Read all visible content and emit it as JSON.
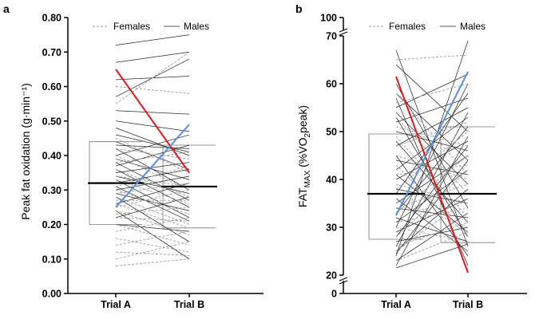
{
  "chart_data": [
    {
      "type": "line",
      "panel": "a",
      "ylabel": "Peak fat oxidation  (g·min⁻¹)",
      "ylim": [
        0,
        0.8
      ],
      "yticks": [
        "0.00",
        "0.10",
        "0.20",
        "0.30",
        "0.40",
        "0.50",
        "0.60",
        "0.70",
        "0.80"
      ],
      "categories": [
        "Trial A",
        "Trial B"
      ],
      "legend": [
        "Females",
        "Males"
      ],
      "legend_position": "top",
      "box": {
        "trial_a": [
          0.2,
          0.44
        ],
        "trial_b": [
          0.19,
          0.43
        ]
      },
      "means": [
        0.32,
        0.31
      ],
      "series": [
        {
          "name": "Males",
          "values": [
            0.72,
            0.75
          ]
        },
        {
          "name": "Males",
          "values": [
            0.67,
            0.7
          ]
        },
        {
          "name": "Males",
          "values": [
            0.57,
            0.68
          ]
        },
        {
          "name": "Males",
          "values": [
            0.62,
            0.63
          ]
        },
        {
          "name": "Females",
          "values": [
            0.55,
            0.7
          ]
        },
        {
          "name": "Females",
          "values": [
            0.6,
            0.58
          ]
        },
        {
          "name": "Males",
          "values": [
            0.53,
            0.52
          ]
        },
        {
          "name": "Males",
          "values": [
            0.5,
            0.47
          ]
        },
        {
          "name": "Males",
          "values": [
            0.48,
            0.4
          ]
        },
        {
          "name": "Males",
          "values": [
            0.46,
            0.41
          ]
        },
        {
          "name": "Males",
          "values": [
            0.44,
            0.36
          ]
        },
        {
          "name": "Males",
          "values": [
            0.43,
            0.42
          ]
        },
        {
          "name": "Males",
          "values": [
            0.42,
            0.3
          ]
        },
        {
          "name": "Males",
          "values": [
            0.4,
            0.46
          ]
        },
        {
          "name": "Males",
          "values": [
            0.39,
            0.33
          ]
        },
        {
          "name": "Males",
          "values": [
            0.38,
            0.27
          ]
        },
        {
          "name": "Males",
          "values": [
            0.37,
            0.43
          ]
        },
        {
          "name": "Males",
          "values": [
            0.36,
            0.25
          ]
        },
        {
          "name": "Males",
          "values": [
            0.35,
            0.38
          ]
        },
        {
          "name": "Males",
          "values": [
            0.34,
            0.29
          ]
        },
        {
          "name": "Males",
          "values": [
            0.33,
            0.22
          ]
        },
        {
          "name": "Males",
          "values": [
            0.32,
            0.36
          ]
        },
        {
          "name": "Males",
          "values": [
            0.31,
            0.21
          ]
        },
        {
          "name": "Males",
          "values": [
            0.3,
            0.34
          ]
        },
        {
          "name": "Males",
          "values": [
            0.29,
            0.24
          ]
        },
        {
          "name": "Males",
          "values": [
            0.28,
            0.15
          ]
        },
        {
          "name": "Males",
          "values": [
            0.26,
            0.32
          ]
        },
        {
          "name": "Males",
          "values": [
            0.24,
            0.1
          ]
        },
        {
          "name": "Males",
          "values": [
            0.22,
            0.28
          ]
        },
        {
          "name": "Males",
          "values": [
            0.2,
            0.18
          ]
        },
        {
          "name": "Females",
          "values": [
            0.45,
            0.35
          ]
        },
        {
          "name": "Females",
          "values": [
            0.42,
            0.39
          ]
        },
        {
          "name": "Females",
          "values": [
            0.4,
            0.3
          ]
        },
        {
          "name": "Females",
          "values": [
            0.38,
            0.41
          ]
        },
        {
          "name": "Females",
          "values": [
            0.36,
            0.28
          ]
        },
        {
          "name": "Females",
          "values": [
            0.34,
            0.31
          ]
        },
        {
          "name": "Females",
          "values": [
            0.33,
            0.26
          ]
        },
        {
          "name": "Females",
          "values": [
            0.31,
            0.37
          ]
        },
        {
          "name": "Females",
          "values": [
            0.3,
            0.23
          ]
        },
        {
          "name": "Females",
          "values": [
            0.29,
            0.32
          ]
        },
        {
          "name": "Females",
          "values": [
            0.28,
            0.2
          ]
        },
        {
          "name": "Females",
          "values": [
            0.27,
            0.27
          ]
        },
        {
          "name": "Females",
          "values": [
            0.26,
            0.19
          ]
        },
        {
          "name": "Females",
          "values": [
            0.25,
            0.3
          ]
        },
        {
          "name": "Females",
          "values": [
            0.24,
            0.17
          ]
        },
        {
          "name": "Females",
          "values": [
            0.23,
            0.25
          ]
        },
        {
          "name": "Females",
          "values": [
            0.22,
            0.21
          ]
        },
        {
          "name": "Females",
          "values": [
            0.2,
            0.14
          ]
        },
        {
          "name": "Females",
          "values": [
            0.18,
            0.22
          ]
        },
        {
          "name": "Females",
          "values": [
            0.16,
            0.12
          ]
        },
        {
          "name": "Females",
          "values": [
            0.14,
            0.18
          ]
        },
        {
          "name": "Females",
          "values": [
            0.12,
            0.11
          ]
        },
        {
          "name": "Females",
          "values": [
            0.1,
            0.15
          ]
        },
        {
          "name": "Females",
          "values": [
            0.08,
            0.1
          ]
        },
        {
          "name": "Males",
          "values": [
            0.65,
            0.35
          ],
          "color": "#e31a1c",
          "highlight": true
        },
        {
          "name": "Males",
          "values": [
            0.25,
            0.49
          ],
          "color": "#5b8fdf",
          "highlight": true
        }
      ]
    },
    {
      "type": "line",
      "panel": "b",
      "ylabel": "FAT",
      "ylabel_sub": "MAX",
      "ylabel_rest": "  (%V̇O",
      "ylabel_sub2": "2",
      "ylabel_end": "peak)",
      "ylim": [
        20,
        70
      ],
      "axis_break": true,
      "yticks": [
        "20",
        "30",
        "40",
        "50",
        "60",
        "70"
      ],
      "yticks_extra": [
        "0",
        "100"
      ],
      "categories": [
        "Trial A",
        "Trial B"
      ],
      "legend": [
        "Females",
        "Males"
      ],
      "legend_position": "top",
      "box": {
        "trial_a": [
          27.5,
          49.5
        ],
        "trial_b": [
          26.8,
          51.0
        ]
      },
      "means": [
        37.0,
        37.0
      ],
      "series": [
        {
          "name": "Males",
          "values": [
            67.0,
            26.0
          ]
        },
        {
          "name": "Males",
          "values": [
            64.0,
            50.0
          ]
        },
        {
          "name": "Males",
          "values": [
            60.0,
            34.0
          ]
        },
        {
          "name": "Males",
          "values": [
            58.0,
            44.0
          ]
        },
        {
          "name": "Males",
          "values": [
            57.0,
            22.0
          ]
        },
        {
          "name": "Males",
          "values": [
            55.0,
            62.0
          ]
        },
        {
          "name": "Males",
          "values": [
            54.0,
            39.0
          ]
        },
        {
          "name": "Males",
          "values": [
            53.0,
            28.0
          ]
        },
        {
          "name": "Males",
          "values": [
            52.0,
            57.0
          ]
        },
        {
          "name": "Males",
          "values": [
            50.0,
            46.0
          ]
        },
        {
          "name": "Males",
          "values": [
            48.0,
            31.0
          ]
        },
        {
          "name": "Males",
          "values": [
            47.0,
            55.0
          ]
        },
        {
          "name": "Males",
          "values": [
            45.0,
            24.0
          ]
        },
        {
          "name": "Males",
          "values": [
            44.0,
            41.0
          ]
        },
        {
          "name": "Males",
          "values": [
            42.0,
            53.0
          ]
        },
        {
          "name": "Males",
          "values": [
            41.0,
            29.0
          ]
        },
        {
          "name": "Males",
          "values": [
            40.0,
            48.0
          ]
        },
        {
          "name": "Males",
          "values": [
            38.0,
            35.0
          ]
        },
        {
          "name": "Males",
          "values": [
            37.0,
            58.0
          ]
        },
        {
          "name": "Males",
          "values": [
            36.0,
            25.0
          ]
        },
        {
          "name": "Males",
          "values": [
            35.0,
            45.0
          ]
        },
        {
          "name": "Males",
          "values": [
            34.0,
            32.0
          ]
        },
        {
          "name": "Males",
          "values": [
            33.0,
            51.0
          ]
        },
        {
          "name": "Males",
          "values": [
            32.0,
            27.0
          ]
        },
        {
          "name": "Males",
          "values": [
            31.0,
            42.0
          ]
        },
        {
          "name": "Males",
          "values": [
            30.0,
            60.0
          ]
        },
        {
          "name": "Males",
          "values": [
            29.0,
            36.0
          ]
        },
        {
          "name": "Males",
          "values": [
            28.0,
            47.0
          ]
        },
        {
          "name": "Males",
          "values": [
            27.0,
            30.0
          ]
        },
        {
          "name": "Males",
          "values": [
            26.0,
            54.0
          ]
        },
        {
          "name": "Males",
          "values": [
            25.0,
            38.0
          ]
        },
        {
          "name": "Males",
          "values": [
            24.5,
            44.0
          ]
        },
        {
          "name": "Males",
          "values": [
            24.0,
            69.0
          ]
        },
        {
          "name": "Males",
          "values": [
            23.0,
            33.0
          ]
        },
        {
          "name": "Males",
          "values": [
            22.0,
            49.0
          ]
        },
        {
          "name": "Males",
          "values": [
            21.5,
            26.5
          ]
        },
        {
          "name": "Females",
          "values": [
            65.0,
            66.0
          ]
        },
        {
          "name": "Females",
          "values": [
            58.0,
            41.0
          ]
        },
        {
          "name": "Females",
          "values": [
            56.0,
            60.0
          ]
        },
        {
          "name": "Females",
          "values": [
            53.0,
            37.0
          ]
        },
        {
          "name": "Females",
          "values": [
            51.0,
            47.0
          ]
        },
        {
          "name": "Females",
          "values": [
            49.0,
            32.0
          ]
        },
        {
          "name": "Females",
          "values": [
            47.0,
            52.0
          ]
        },
        {
          "name": "Females",
          "values": [
            45.0,
            40.0
          ]
        },
        {
          "name": "Females",
          "values": [
            43.0,
            28.0
          ]
        },
        {
          "name": "Females",
          "values": [
            41.0,
            43.0
          ]
        },
        {
          "name": "Females",
          "values": [
            39.0,
            35.0
          ]
        },
        {
          "name": "Females",
          "values": [
            38.0,
            50.0
          ]
        },
        {
          "name": "Females",
          "values": [
            36.0,
            30.0
          ]
        },
        {
          "name": "Females",
          "values": [
            34.0,
            39.0
          ]
        },
        {
          "name": "Females",
          "values": [
            33.0,
            45.0
          ]
        },
        {
          "name": "Females",
          "values": [
            31.0,
            34.0
          ]
        },
        {
          "name": "Females",
          "values": [
            30.0,
            27.0
          ]
        },
        {
          "name": "Females",
          "values": [
            28.0,
            42.0
          ]
        },
        {
          "name": "Females",
          "values": [
            26.0,
            31.0
          ]
        },
        {
          "name": "Females",
          "values": [
            25.0,
            36.0
          ]
        },
        {
          "name": "Females",
          "values": [
            23.0,
            29.0
          ]
        },
        {
          "name": "Males",
          "values": [
            61.5,
            20.5
          ],
          "color": "#e31a1c",
          "highlight": true
        },
        {
          "name": "Males",
          "values": [
            32.5,
            62.5
          ],
          "color": "#5b8fdf",
          "highlight": true
        }
      ]
    }
  ]
}
